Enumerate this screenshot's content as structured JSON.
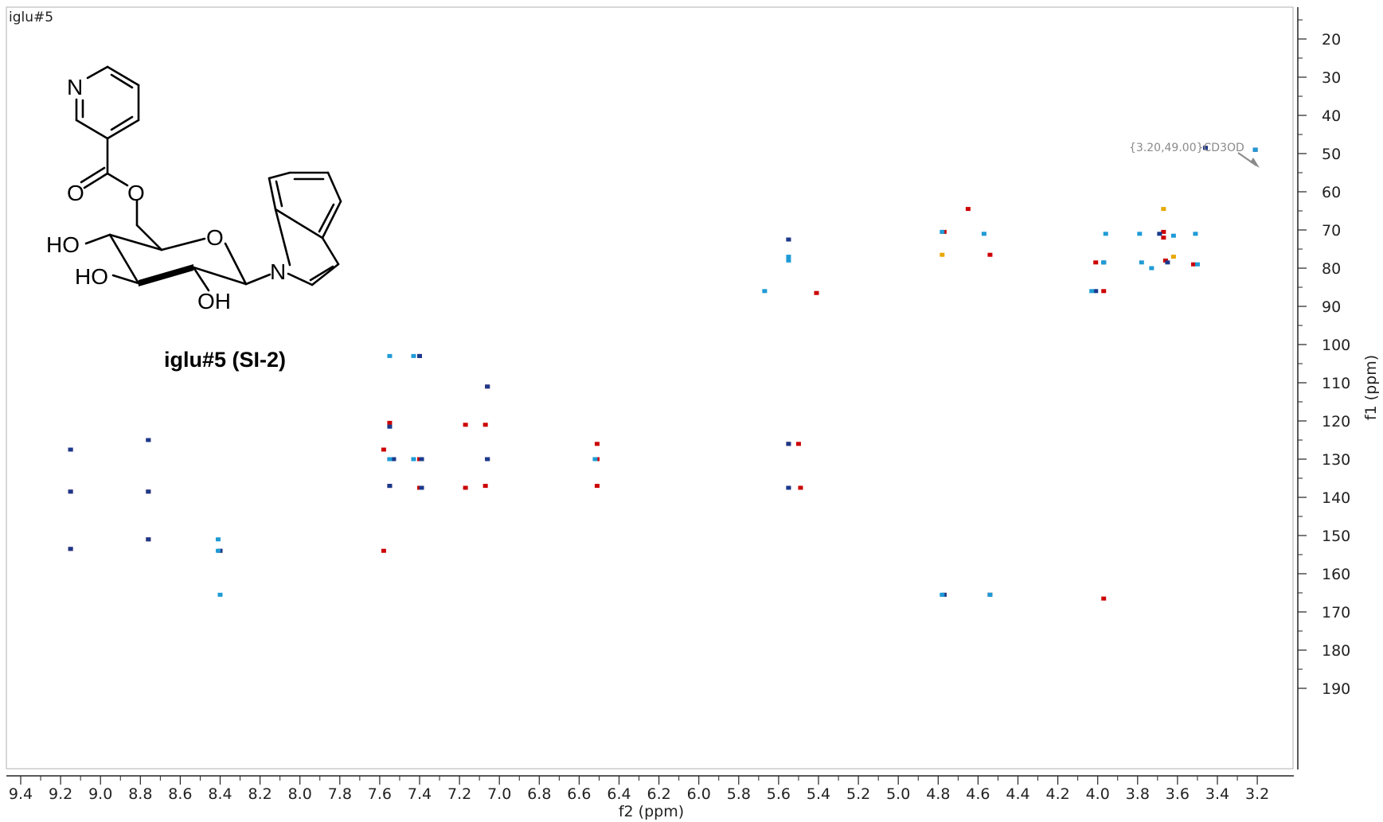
{
  "chart_data": {
    "type": "heatmap",
    "plot_label": "iglu#5",
    "xlabel": "f2 (ppm)",
    "ylabel": "f1 (ppm)",
    "xlim": [
      9.45,
      3.1
    ],
    "ylim": [
      12,
      192
    ],
    "x_reversed": true,
    "x_ticks": [
      "9.4",
      "9.2",
      "9.0",
      "8.8",
      "8.6",
      "8.4",
      "8.2",
      "8.0",
      "7.8",
      "7.6",
      "7.4",
      "7.2",
      "7.0",
      "6.8",
      "6.6",
      "6.4",
      "6.2",
      "6.0",
      "5.8",
      "5.6",
      "5.4",
      "5.2",
      "5.0",
      "4.8",
      "4.6",
      "4.4",
      "4.2",
      "4.0",
      "3.8",
      "3.6",
      "3.4",
      "3.2"
    ],
    "y_ticks": [
      "20",
      "30",
      "40",
      "50",
      "60",
      "70",
      "80",
      "90",
      "100",
      "110",
      "120",
      "130",
      "140",
      "150",
      "160",
      "170",
      "180",
      "190"
    ],
    "grid": false,
    "annotation": {
      "text": "{3.20,49.00}CD3OD",
      "x": 3.2,
      "y": 49.0
    },
    "series": [
      {
        "color": "#cc0000",
        "points": [
          [
            9.15,
            127.5
          ],
          [
            9.15,
            138.5
          ],
          [
            9.15,
            153.5
          ],
          [
            8.76,
            125.0
          ],
          [
            8.76,
            138.5
          ],
          [
            8.76,
            151.0
          ],
          [
            8.4,
            154.0
          ],
          [
            7.58,
            127.5
          ],
          [
            7.55,
            120.5
          ],
          [
            7.55,
            130.0
          ],
          [
            7.55,
            137.0
          ],
          [
            7.58,
            154.0
          ],
          [
            7.4,
            103.0
          ],
          [
            7.4,
            130.0
          ],
          [
            7.4,
            137.5
          ],
          [
            7.17,
            121.0
          ],
          [
            7.17,
            137.5
          ],
          [
            7.06,
            111.0
          ],
          [
            7.07,
            121.0
          ],
          [
            7.06,
            130.0
          ],
          [
            7.07,
            137.0
          ],
          [
            6.51,
            126.0
          ],
          [
            6.51,
            130.0
          ],
          [
            6.51,
            137.0
          ],
          [
            5.55,
            72.5
          ],
          [
            5.55,
            126.0
          ],
          [
            5.5,
            126.0
          ],
          [
            5.55,
            137.5
          ],
          [
            5.49,
            137.5
          ],
          [
            5.41,
            86.5
          ],
          [
            4.77,
            70.5
          ],
          [
            4.65,
            64.5
          ],
          [
            4.77,
            165.5
          ],
          [
            4.54,
            76.5
          ],
          [
            4.54,
            165.5
          ],
          [
            3.97,
            166.5
          ],
          [
            4.01,
            78.5
          ],
          [
            3.97,
            86.0
          ],
          [
            3.67,
            70.5
          ],
          [
            3.67,
            72.0
          ],
          [
            3.66,
            78.0
          ],
          [
            3.52,
            79.0
          ],
          [
            3.46,
            48.5
          ],
          [
            3.21,
            49.0
          ]
        ]
      },
      {
        "color": "#1a3a8c",
        "points": [
          [
            9.15,
            127.5
          ],
          [
            9.15,
            138.5
          ],
          [
            9.15,
            153.5
          ],
          [
            8.76,
            125.0
          ],
          [
            8.76,
            138.5
          ],
          [
            8.76,
            151.0
          ],
          [
            8.4,
            154.0
          ],
          [
            7.55,
            121.5
          ],
          [
            7.53,
            130.0
          ],
          [
            7.55,
            137.0
          ],
          [
            7.4,
            103.0
          ],
          [
            7.39,
            130.0
          ],
          [
            7.39,
            137.5
          ],
          [
            7.06,
            111.0
          ],
          [
            7.06,
            130.0
          ],
          [
            5.55,
            126.0
          ],
          [
            5.55,
            137.5
          ],
          [
            5.55,
            72.5
          ],
          [
            4.77,
            165.5
          ],
          [
            4.54,
            165.5
          ],
          [
            4.01,
            86.0
          ],
          [
            3.97,
            78.5
          ],
          [
            3.69,
            71.0
          ],
          [
            3.65,
            78.5
          ],
          [
            3.46,
            48.5
          ],
          [
            3.21,
            49.0
          ]
        ]
      },
      {
        "color": "#1f9bd6",
        "points": [
          [
            8.41,
            151.0
          ],
          [
            8.41,
            154.0
          ],
          [
            8.4,
            165.5
          ],
          [
            7.55,
            103.0
          ],
          [
            7.55,
            130.0
          ],
          [
            7.43,
            103.0
          ],
          [
            7.43,
            130.0
          ],
          [
            6.52,
            130.0
          ],
          [
            5.67,
            86.0
          ],
          [
            5.55,
            77.0
          ],
          [
            5.55,
            78.0
          ],
          [
            4.78,
            70.5
          ],
          [
            4.78,
            165.5
          ],
          [
            4.57,
            71.0
          ],
          [
            4.54,
            165.5
          ],
          [
            4.03,
            86.0
          ],
          [
            3.96,
            71.0
          ],
          [
            3.97,
            78.5
          ],
          [
            3.78,
            78.5
          ],
          [
            3.79,
            71.0
          ],
          [
            3.73,
            80.0
          ],
          [
            3.62,
            71.5
          ],
          [
            3.51,
            71.0
          ],
          [
            3.5,
            79.0
          ],
          [
            3.21,
            49.0
          ]
        ]
      },
      {
        "color": "#e8a800",
        "points": [
          [
            4.78,
            76.5
          ],
          [
            3.67,
            64.5
          ],
          [
            3.62,
            77.0
          ]
        ]
      }
    ]
  },
  "structure": {
    "atom_N_pyridine": "N",
    "atom_O_carbonyl": "O",
    "atom_O_ester": "O",
    "atom_O_ring": "O",
    "atom_N_indole": "N",
    "group_HO_1": "HO",
    "group_HO_2": "HO",
    "group_OH": "OH",
    "caption": "iglu#5 (SI-2)"
  },
  "colors": {
    "frame": "#b0b0b0",
    "axis": "#222222",
    "annotation": "#8a8a8a"
  }
}
